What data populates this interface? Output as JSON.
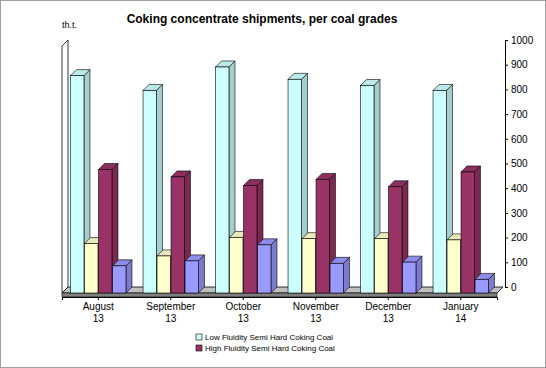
{
  "chart_data": {
    "type": "bar",
    "title": "Coking concentrate shipments, per coal grades",
    "y_label": "th.t.",
    "categories": [
      "August 13",
      "September 13",
      "October 13",
      "November 13",
      "December 13",
      "January 14"
    ],
    "series": [
      {
        "name": "Low Fluidity Semi Hard Coking Coal",
        "color": "#ccffff",
        "values": [
          880,
          820,
          915,
          865,
          840,
          820
        ]
      },
      {
        "color": "#ffffcc",
        "values": [
          200,
          150,
          225,
          220,
          220,
          215
        ]
      },
      {
        "name": "High Fluidity Semi Hard Coking Coal",
        "color": "#993366",
        "values": [
          500,
          470,
          435,
          460,
          430,
          490
        ]
      },
      {
        "color": "#9999ff",
        "values": [
          110,
          130,
          195,
          120,
          125,
          55
        ]
      }
    ],
    "ylim": [
      0,
      1000
    ],
    "yticks": [
      0,
      100,
      200,
      300,
      400,
      500,
      600,
      700,
      800,
      900,
      1000
    ],
    "grid": false,
    "legend": "bottom"
  }
}
